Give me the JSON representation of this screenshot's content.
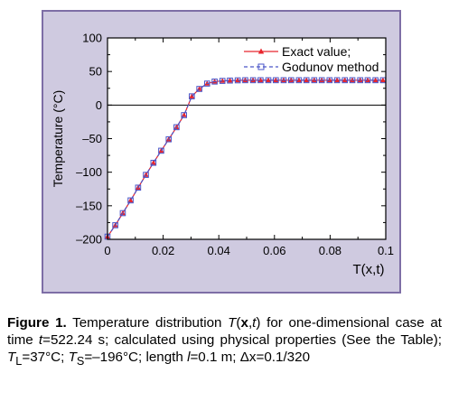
{
  "chart_data": {
    "type": "line",
    "ylabel": "Temperature (°C)",
    "xlabel": "T(x,t)",
    "xlim": [
      0,
      0.1
    ],
    "ylim": [
      -200,
      100
    ],
    "x_ticks": [
      "0",
      "0.02",
      "0.04",
      "0.06",
      "0.08",
      "0.1"
    ],
    "y_ticks": [
      "-200",
      "-150",
      "-100",
      "-50",
      "0",
      "50",
      "100"
    ],
    "grid": false,
    "legend_position": "top-right",
    "series": [
      {
        "name": "Exact value;",
        "color": "#e8262d",
        "line_style": "solid",
        "marker": "triangle",
        "x": [
          0.0,
          0.0028,
          0.0055,
          0.0083,
          0.011,
          0.0138,
          0.0165,
          0.0193,
          0.022,
          0.0248,
          0.0275,
          0.0303,
          0.033,
          0.0358,
          0.0385,
          0.0413,
          0.044,
          0.0468,
          0.0495,
          0.0523,
          0.055,
          0.0578,
          0.0605,
          0.0633,
          0.066,
          0.0688,
          0.0715,
          0.0743,
          0.077,
          0.0798,
          0.0825,
          0.0853,
          0.088,
          0.0908,
          0.0935,
          0.0963,
          0.099
        ],
        "y": [
          -196,
          -179,
          -161,
          -142,
          -123,
          -104,
          -86,
          -68,
          -51,
          -33,
          -15,
          13,
          24,
          32,
          35,
          36,
          36.5,
          36.8,
          37,
          37,
          37,
          37,
          37,
          37,
          37,
          37,
          37,
          37,
          37,
          37,
          37,
          37,
          37,
          37,
          37,
          37,
          37
        ]
      },
      {
        "name": "Godunov method",
        "color": "#4a55c8",
        "line_style": "dashed",
        "marker": "square",
        "x": [
          0.0,
          0.0028,
          0.0055,
          0.0083,
          0.011,
          0.0138,
          0.0165,
          0.0193,
          0.022,
          0.0248,
          0.0275,
          0.0303,
          0.033,
          0.0358,
          0.0385,
          0.0413,
          0.044,
          0.0468,
          0.0495,
          0.0523,
          0.055,
          0.0578,
          0.0605,
          0.0633,
          0.066,
          0.0688,
          0.0715,
          0.0743,
          0.077,
          0.0798,
          0.0825,
          0.0853,
          0.088,
          0.0908,
          0.0935,
          0.0963,
          0.099
        ],
        "y": [
          -196,
          -179,
          -161,
          -142,
          -123,
          -104,
          -86,
          -68,
          -51,
          -33,
          -15,
          13,
          24,
          32,
          35,
          36,
          36.5,
          36.8,
          37,
          37,
          37,
          37,
          37,
          37,
          37,
          37,
          37,
          37,
          37,
          37,
          37,
          37,
          37,
          37,
          37,
          37,
          37
        ]
      }
    ]
  },
  "caption": {
    "label": "Figure 1.",
    "text_1": " Temperature distribution ",
    "text_T": "T",
    "text_args_open": "(",
    "text_args_x": "x",
    "text_args_comma": ",",
    "text_args_t": "t",
    "text_args_close": ")",
    "text_2": " for one-dimensional case at time ",
    "text_t": "t",
    "text_3": "=522.24 s; calculated using physical properties (See the Table); ",
    "text_TL": "T",
    "text_L_sub": "L",
    "text_4": "=37°C; ",
    "text_TS": "T",
    "text_S_sub": "S",
    "text_5": "=–196°C; length ",
    "text_l": "l",
    "text_6": "=0.1 m; ",
    "text_dx": "Δx",
    "text_7": "=0.1/320"
  }
}
